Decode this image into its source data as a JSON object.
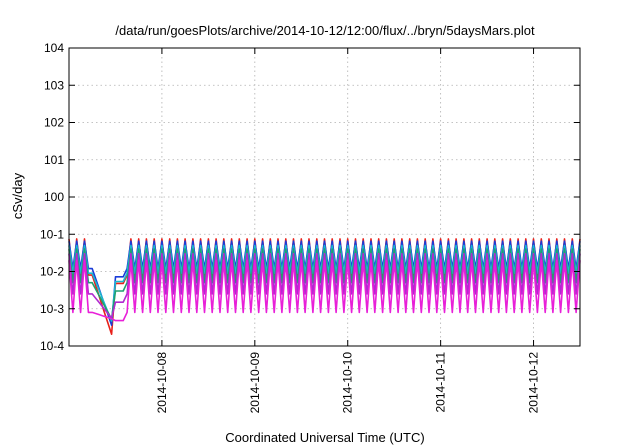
{
  "chart_data": {
    "type": "line",
    "title": "/data/run/goesPlots/archive/2014-10-12/12:00/flux/../bryn/5daysMars.plot",
    "xlabel": "Coordinated Universal Time (UTC)",
    "ylabel": "cSv/day",
    "yscale": "log",
    "ylim_exponents": [
      -4,
      4
    ],
    "y_tick_labels": [
      {
        "exp": -4,
        "label": "10-4"
      },
      {
        "exp": -3,
        "label": "10-3"
      },
      {
        "exp": -2,
        "label": "10-2"
      },
      {
        "exp": -1,
        "label": "10-1"
      },
      {
        "exp": 0,
        "label": "100"
      },
      {
        "exp": 1,
        "label": "101"
      },
      {
        "exp": 2,
        "label": "102"
      },
      {
        "exp": 3,
        "label": "103"
      },
      {
        "exp": 4,
        "label": "104"
      }
    ],
    "xlim": [
      "2014-10-07T00:00",
      "2014-10-12T12:00"
    ],
    "x_ticks": [
      "2014-10-08",
      "2014-10-09",
      "2014-10-10",
      "2014-10-11",
      "2014-10-12"
    ],
    "grid": true,
    "period_hours": 2,
    "series": [
      {
        "color": "#e8201a",
        "peak": 0.075,
        "trough": 0.008
      },
      {
        "color": "#1a3cd8",
        "peak": 0.065,
        "trough": 0.012
      },
      {
        "color": "#19b8d0",
        "peak": 0.05,
        "trough": 0.009
      },
      {
        "color": "#20a070",
        "peak": 0.04,
        "trough": 0.005
      },
      {
        "color": "#b02ad0",
        "peak": 0.03,
        "trough": 0.0025
      },
      {
        "color": "#e820d8",
        "peak": 0.02,
        "trough": 0.0008
      }
    ],
    "dip_event": {
      "start": "2014-10-07T06:00",
      "end": "2014-10-07T12:00",
      "min_value": 0.0001
    }
  }
}
